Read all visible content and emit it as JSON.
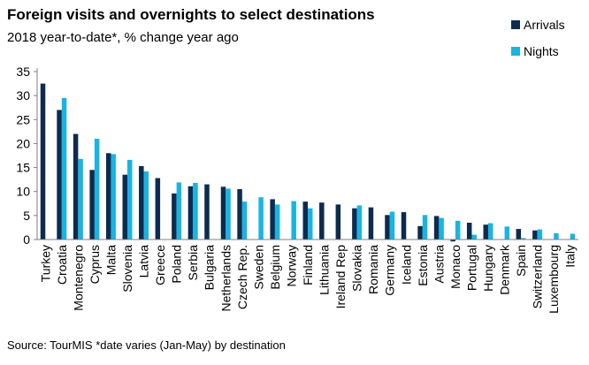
{
  "title": "Foreign visits and overnights to select destinations",
  "subtitle": "2018 year-to-date*, % change year ago",
  "source": "Source: TourMIS     *date varies (Jan-May) by destination",
  "chart_data": {
    "type": "bar",
    "categories": [
      "Turkey",
      "Croatia",
      "Montenegro",
      "Cyprus",
      "Malta",
      "Slovenia",
      "Latvia",
      "Greece",
      "Poland",
      "Serbia",
      "Bulgaria",
      "Netherlands",
      "Czech Rep.",
      "Sweden",
      "Belgium",
      "Norway",
      "Finland",
      "Lithuania",
      "Ireland Rep",
      "Slovakia",
      "Romania",
      "Germany",
      "Iceland",
      "Estonia",
      "Austria",
      "Monaco",
      "Portugal",
      "Hungary",
      "Denmark",
      "Spain",
      "Switzerland",
      "Luxembourg",
      "Italy"
    ],
    "series": [
      {
        "name": "Arrivals",
        "color": "#0d2b4e",
        "values": [
          32.5,
          27,
          22,
          14.5,
          18,
          13.5,
          15.3,
          12.8,
          9.6,
          11.1,
          11.5,
          11,
          10.5,
          null,
          8.4,
          null,
          7.9,
          7.7,
          7.3,
          6.5,
          6.7,
          5.1,
          5.7,
          2.8,
          4.9,
          -0.4,
          3.5,
          3.1,
          null,
          2.2,
          1.9,
          null,
          null
        ]
      },
      {
        "name": "Nights",
        "color": "#1ab4e0",
        "values": [
          null,
          29.5,
          16.8,
          21,
          17.8,
          16.6,
          14.2,
          null,
          11.9,
          11.8,
          null,
          10.6,
          7.9,
          8.8,
          7.3,
          8,
          6.5,
          null,
          null,
          7.1,
          null,
          5.8,
          null,
          5.1,
          4.5,
          3.9,
          1,
          3.4,
          2.7,
          0.3,
          2.1,
          1.3,
          1.2
        ]
      }
    ],
    "ylim": [
      0,
      35
    ],
    "yticks": [
      0,
      5,
      10,
      15,
      20,
      25,
      30,
      35
    ],
    "grid": false,
    "legend_position": "top-right"
  }
}
